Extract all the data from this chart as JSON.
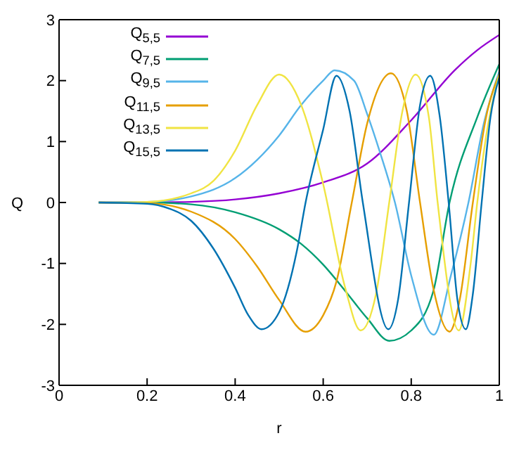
{
  "chart_data": {
    "type": "line",
    "xlabel": "r",
    "ylabel": "Q",
    "xlim": [
      0,
      1
    ],
    "ylim": [
      -3,
      3
    ],
    "xticks": [
      0,
      0.2,
      0.4,
      0.6,
      0.8,
      1
    ],
    "yticks": [
      -3,
      -2,
      -1,
      0,
      1,
      2,
      3
    ],
    "legend": "top left",
    "marker": "none",
    "line_style": "solid",
    "series": [
      {
        "name": "Q$_{5,5}$",
        "color": "#9400d3",
        "x": [
          0.09,
          0.2,
          0.3,
          0.4,
          0.5,
          0.6,
          0.7,
          0.8,
          0.9,
          0.95,
          1
        ],
        "values": [
          0,
          0,
          0.01,
          0.05,
          0.15,
          0.33,
          0.64,
          1.35,
          2.18,
          2.5,
          2.75
        ]
      },
      {
        "name": "Q$_{7,5}$",
        "color": "#009e73",
        "x": [
          0.09,
          0.2,
          0.3,
          0.4,
          0.5,
          0.55,
          0.6,
          0.65,
          0.7,
          0.75,
          0.8,
          0.85,
          0.887,
          0.95,
          1
        ],
        "values": [
          0,
          0,
          -0.03,
          -0.16,
          -0.44,
          -0.68,
          -1.02,
          -1.45,
          -1.9,
          -2.27,
          -2.1,
          -1.46,
          0,
          1.4,
          2.27
        ]
      },
      {
        "name": "Q$_{9,5}$",
        "color": "#56b4e9",
        "x": [
          0.09,
          0.2,
          0.3,
          0.4,
          0.45,
          0.5,
          0.55,
          0.6,
          0.626,
          0.67,
          0.7,
          0.73,
          0.763,
          0.8,
          0.851,
          0.89,
          0.93,
          0.965,
          1
        ],
        "values": [
          0,
          0.01,
          0.1,
          0.4,
          0.7,
          1.1,
          1.6,
          2.0,
          2.17,
          2.0,
          1.45,
          0.8,
          0,
          -1.2,
          -2.17,
          -1.2,
          0,
          1.3,
          2.15
        ]
      },
      {
        "name": "Q$_{11,5}$",
        "color": "#e69f00",
        "x": [
          0.09,
          0.2,
          0.3,
          0.4,
          0.45,
          0.5,
          0.56,
          0.6,
          0.63,
          0.665,
          0.7,
          0.754,
          0.79,
          0.82,
          0.85,
          0.887,
          0.91,
          0.94,
          0.97,
          1
        ],
        "values": [
          0,
          -0.01,
          -0.15,
          -0.6,
          -1.05,
          -1.6,
          -2.12,
          -1.85,
          -1.3,
          0,
          1.3,
          2.12,
          1.5,
          0,
          -1.4,
          -2.12,
          -1.6,
          0,
          1.4,
          2.1
        ]
      },
      {
        "name": "Q$_{13,5}$",
        "color": "#f0e442",
        "x": [
          0.09,
          0.2,
          0.3,
          0.35,
          0.4,
          0.45,
          0.5,
          0.55,
          0.6,
          0.65,
          0.685,
          0.72,
          0.75,
          0.78,
          0.81,
          0.84,
          0.86,
          0.908,
          0.935,
          0.95,
          0.975,
          1
        ],
        "values": [
          0,
          0.01,
          0.15,
          0.35,
          0.85,
          1.6,
          2.1,
          1.6,
          0.3,
          -1.4,
          -2.1,
          -1.5,
          0,
          1.5,
          2.1,
          1.4,
          0,
          -2.1,
          -1,
          0,
          1.3,
          2.1
        ]
      },
      {
        "name": "Q$_{15,5}$",
        "color": "#0072b2",
        "x": [
          0.09,
          0.2,
          0.25,
          0.3,
          0.35,
          0.4,
          0.43,
          0.46,
          0.5,
          0.54,
          0.56,
          0.6,
          0.63,
          0.66,
          0.69,
          0.748,
          0.77,
          0.795,
          0.82,
          0.843,
          0.865,
          0.885,
          0.905,
          0.924,
          0.94,
          0.96,
          0.98,
          1
        ],
        "values": [
          0,
          -0.02,
          -0.1,
          -0.3,
          -0.75,
          -1.4,
          -1.85,
          -2.08,
          -1.8,
          -0.8,
          0,
          1.2,
          2.08,
          1.5,
          0,
          -2.08,
          -1.6,
          0,
          1.6,
          2.08,
          1.4,
          0,
          -1.6,
          -2.08,
          -1.5,
          0,
          1.4,
          2.05
        ]
      }
    ]
  }
}
